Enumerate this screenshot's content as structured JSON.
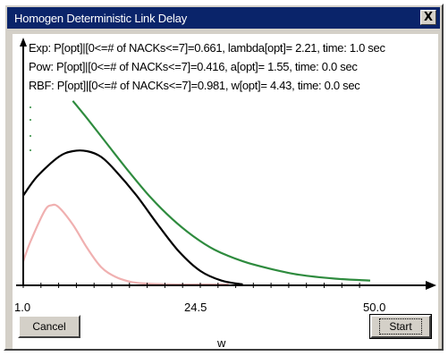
{
  "window": {
    "title": "Homogen Deterministic Link Delay",
    "close_glyph": "X"
  },
  "info_lines": [
    "Exp: P[opt]|[0<=# of NACKs<=7]=0.661,  lambda[opt]= 2.21, time:  1.0 sec",
    "Pow: P[opt]|[0<=# of NACKs<=7]=0.416,  a[opt]= 1.55, time:  0.0 sec",
    "RBF: P[opt]|[0<=# of NACKs<=7]=0.981,  w[opt]= 4.43, time:  0.0 sec"
  ],
  "x_axis": {
    "tick_labels": [
      "1.0",
      "24.5",
      "50.0"
    ],
    "label": "w"
  },
  "buttons": {
    "cancel": "Cancel",
    "start": "Start"
  },
  "colors": {
    "titlebar": "#0a246a",
    "exp_curve": "#2e8b3e",
    "rbf_curve": "#000000",
    "pow_curve": "#f0b0b0"
  },
  "chart_data": {
    "type": "line",
    "xlabel": "w",
    "xlim": [
      1.0,
      50.0
    ],
    "ylim": [
      0,
      1
    ],
    "grid": false,
    "x_ticks": [
      "1.0",
      "24.5",
      "50.0"
    ],
    "series": [
      {
        "color": "#2e8b3e",
        "x": [
          8,
          10,
          13,
          16,
          19,
          22,
          25,
          28,
          32,
          36,
          40,
          45,
          50
        ],
        "y": [
          0.95,
          0.86,
          0.72,
          0.58,
          0.45,
          0.34,
          0.25,
          0.18,
          0.12,
          0.08,
          0.05,
          0.03,
          0.02
        ]
      },
      {
        "color": "#000000",
        "x": [
          1,
          3,
          6,
          8,
          10,
          12,
          14,
          17,
          20,
          23,
          26,
          29,
          32
        ],
        "y": [
          0.46,
          0.56,
          0.66,
          0.69,
          0.69,
          0.66,
          0.59,
          0.46,
          0.31,
          0.17,
          0.07,
          0.02,
          0.0
        ]
      },
      {
        "color": "#f0b0b0",
        "x": [
          1,
          2,
          4,
          5,
          6,
          8,
          10,
          12,
          14,
          16,
          18,
          22,
          26,
          30
        ],
        "y": [
          0.12,
          0.22,
          0.38,
          0.41,
          0.4,
          0.31,
          0.19,
          0.09,
          0.04,
          0.015,
          0.005,
          0.0,
          0.0,
          0.0
        ]
      }
    ]
  }
}
